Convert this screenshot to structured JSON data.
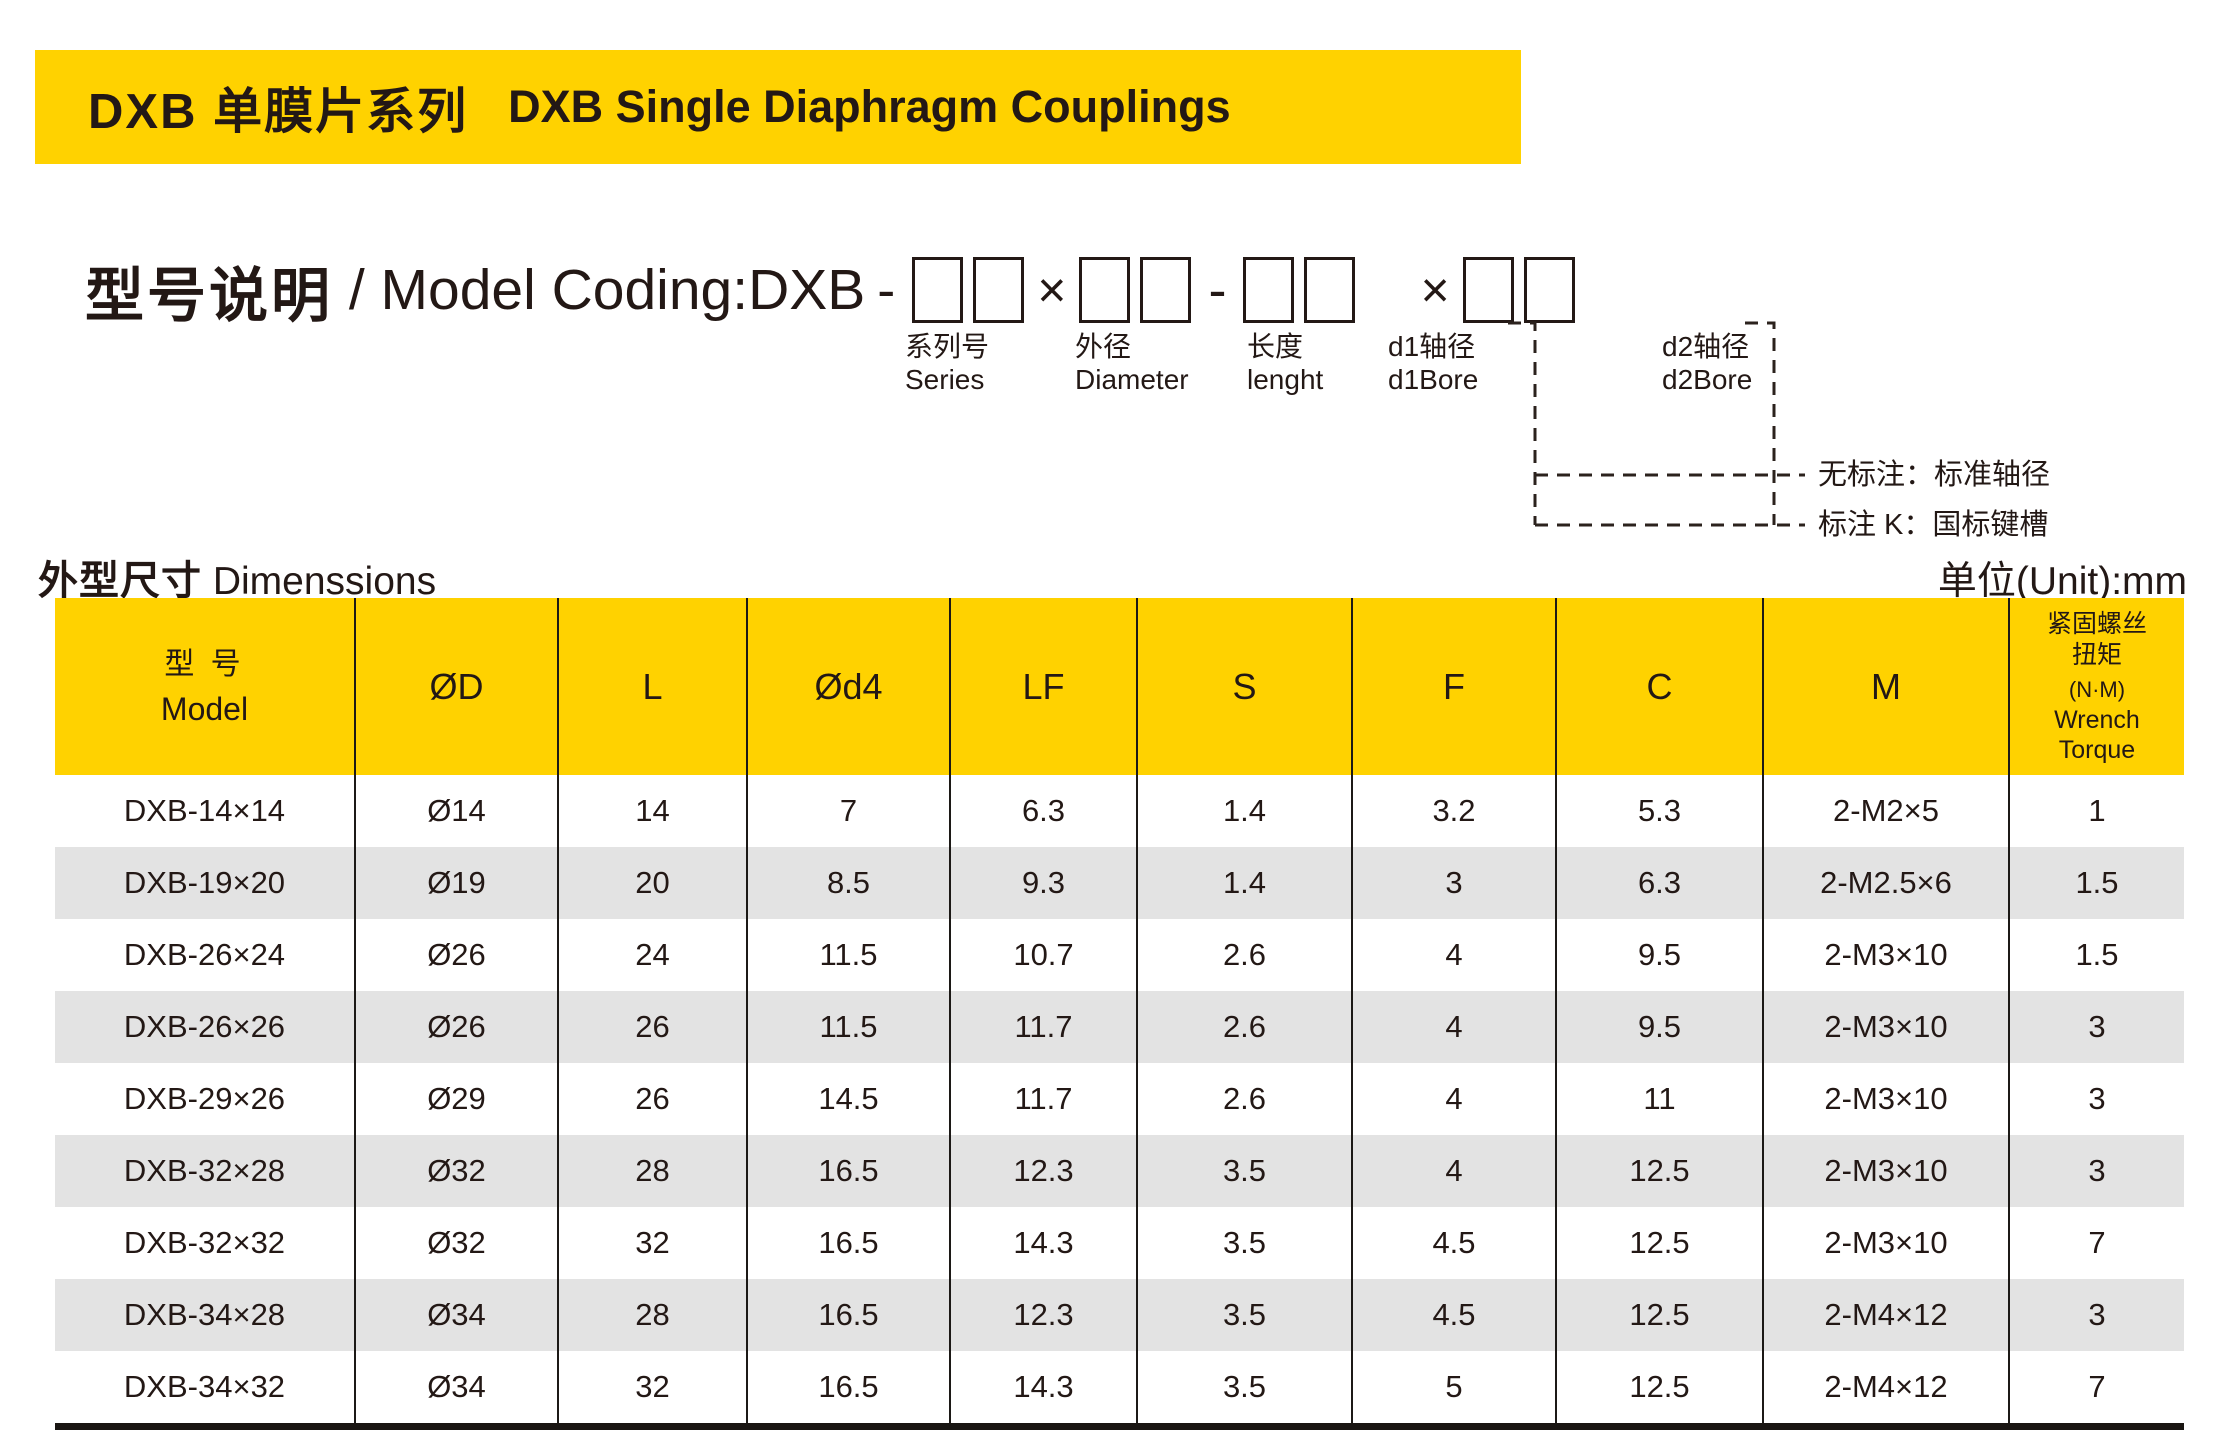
{
  "banner": {
    "title_zh": "DXB 单膜片系列",
    "title_en": "DXB Single Diaphragm Couplings"
  },
  "model_coding": {
    "heading_zh": "型号说明",
    "heading_rest": " / Model Coding:",
    "pattern": [
      {
        "text": "DXB"
      },
      {
        "sep": "-"
      },
      {
        "boxes": 2
      },
      {
        "sep": "×"
      },
      {
        "boxes": 2
      },
      {
        "sep": "-"
      },
      {
        "boxes": 2
      },
      {
        "gap": true
      },
      {
        "sep": "×"
      },
      {
        "boxes": 2
      }
    ],
    "fields": [
      {
        "zh": "系列号",
        "en": "Series"
      },
      {
        "zh": "外径",
        "en": "Diameter"
      },
      {
        "zh": "长度",
        "en": "lenght"
      },
      {
        "zh": "d1轴径",
        "en": "d1Bore"
      },
      {
        "zh": "d2轴径",
        "en": "d2Bore"
      }
    ],
    "notes": [
      "无标注：标准轴径",
      "标注 K：国标键槽"
    ]
  },
  "dimensions_section": {
    "title_zh": "外型尺寸",
    "title_en": " Dimenssions",
    "unit": "单位(Unit):mm"
  },
  "table": {
    "header": {
      "model_zh": "型 号",
      "model_en": "Model",
      "cols": [
        "ØD",
        "L",
        "Ød4",
        "LF",
        "S",
        "F",
        "C",
        "M"
      ],
      "torque": [
        "紧固螺丝",
        "扭矩",
        "(N·M)",
        "Wrench",
        "Torque"
      ]
    },
    "rows": [
      [
        "DXB-14×14",
        "Ø14",
        "14",
        "7",
        "6.3",
        "1.4",
        "3.2",
        "5.3",
        "2-M2×5",
        "1"
      ],
      [
        "DXB-19×20",
        "Ø19",
        "20",
        "8.5",
        "9.3",
        "1.4",
        "3",
        "6.3",
        "2-M2.5×6",
        "1.5"
      ],
      [
        "DXB-26×24",
        "Ø26",
        "24",
        "11.5",
        "10.7",
        "2.6",
        "4",
        "9.5",
        "2-M3×10",
        "1.5"
      ],
      [
        "DXB-26×26",
        "Ø26",
        "26",
        "11.5",
        "11.7",
        "2.6",
        "4",
        "9.5",
        "2-M3×10",
        "3"
      ],
      [
        "DXB-29×26",
        "Ø29",
        "26",
        "14.5",
        "11.7",
        "2.6",
        "4",
        "11",
        "2-M3×10",
        "3"
      ],
      [
        "DXB-32×28",
        "Ø32",
        "28",
        "16.5",
        "12.3",
        "3.5",
        "4",
        "12.5",
        "2-M3×10",
        "3"
      ],
      [
        "DXB-32×32",
        "Ø32",
        "32",
        "16.5",
        "14.3",
        "3.5",
        "4.5",
        "12.5",
        "2-M3×10",
        "7"
      ],
      [
        "DXB-34×28",
        "Ø34",
        "28",
        "16.5",
        "12.3",
        "3.5",
        "4.5",
        "12.5",
        "2-M4×12",
        "3"
      ],
      [
        "DXB-34×32",
        "Ø34",
        "32",
        "16.5",
        "14.3",
        "3.5",
        "5",
        "12.5",
        "2-M4×12",
        "7"
      ]
    ]
  },
  "colors": {
    "accent_yellow": "#FFD200",
    "row_alt": "#E3E3E3",
    "ink": "#231815"
  }
}
